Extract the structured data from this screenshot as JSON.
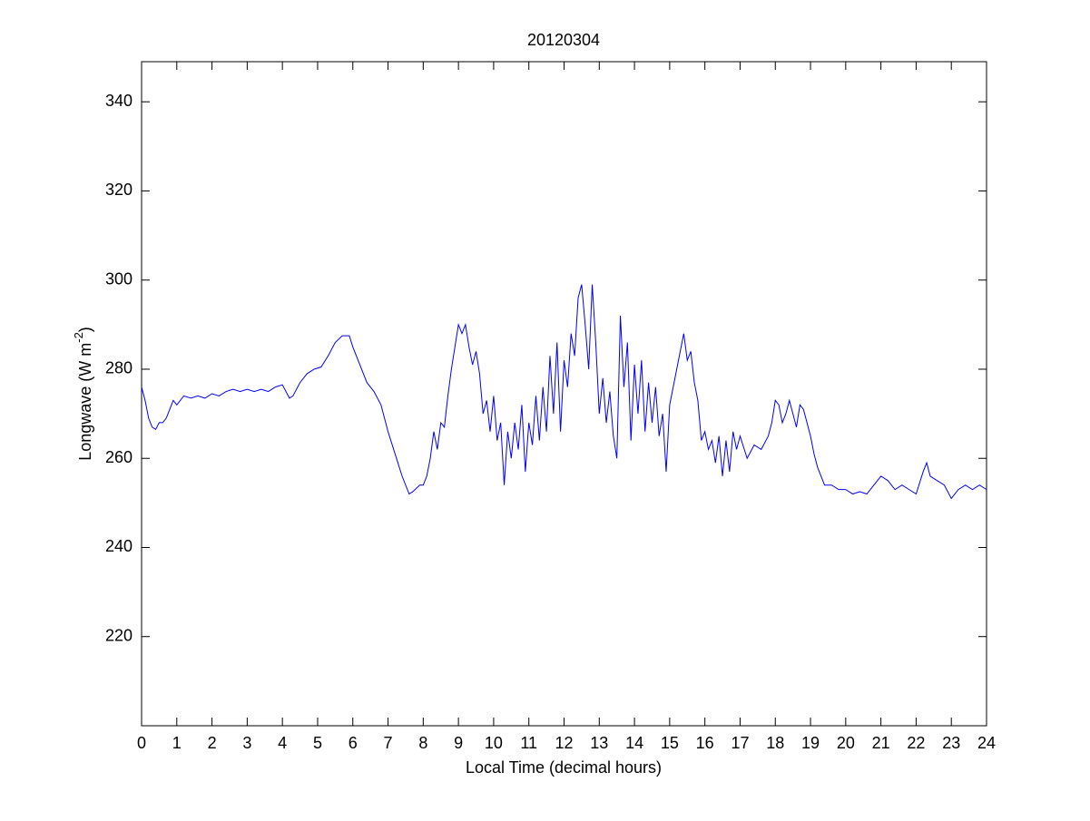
{
  "chart_data": {
    "type": "line",
    "title": "20120304",
    "xlabel": "Local Time (decimal hours)",
    "ylabel_parts": [
      "Longwave (W m",
      "-2",
      ")"
    ],
    "x": [
      0,
      0.1,
      0.2,
      0.3,
      0.4,
      0.5,
      0.6,
      0.7,
      0.8,
      0.9,
      1.0,
      1.2,
      1.4,
      1.6,
      1.8,
      2.0,
      2.2,
      2.4,
      2.6,
      2.8,
      3.0,
      3.2,
      3.4,
      3.6,
      3.8,
      4.0,
      4.1,
      4.2,
      4.3,
      4.5,
      4.7,
      4.9,
      5.1,
      5.3,
      5.5,
      5.7,
      5.9,
      6.0,
      6.2,
      6.4,
      6.6,
      6.8,
      7.0,
      7.2,
      7.4,
      7.6,
      7.7,
      7.9,
      8.0,
      8.1,
      8.2,
      8.3,
      8.4,
      8.5,
      8.6,
      8.7,
      8.8,
      8.9,
      9.0,
      9.1,
      9.2,
      9.3,
      9.4,
      9.5,
      9.6,
      9.7,
      9.8,
      9.9,
      10.0,
      10.1,
      10.2,
      10.3,
      10.4,
      10.5,
      10.6,
      10.7,
      10.8,
      10.9,
      11.0,
      11.1,
      11.2,
      11.3,
      11.4,
      11.5,
      11.6,
      11.7,
      11.8,
      11.9,
      12.0,
      12.1,
      12.2,
      12.3,
      12.4,
      12.5,
      12.6,
      12.7,
      12.8,
      12.9,
      13.0,
      13.1,
      13.2,
      13.3,
      13.4,
      13.5,
      13.6,
      13.7,
      13.8,
      13.9,
      14.0,
      14.1,
      14.2,
      14.3,
      14.4,
      14.5,
      14.6,
      14.7,
      14.8,
      14.9,
      15.0,
      15.2,
      15.4,
      15.5,
      15.6,
      15.7,
      15.8,
      15.9,
      16.0,
      16.1,
      16.2,
      16.3,
      16.4,
      16.5,
      16.6,
      16.7,
      16.8,
      16.9,
      17.0,
      17.2,
      17.4,
      17.6,
      17.8,
      17.9,
      18.0,
      18.1,
      18.2,
      18.3,
      18.4,
      18.5,
      18.6,
      18.7,
      18.8,
      18.9,
      19.0,
      19.1,
      19.2,
      19.3,
      19.4,
      19.6,
      19.8,
      20.0,
      20.2,
      20.4,
      20.6,
      20.8,
      21.0,
      21.2,
      21.4,
      21.6,
      21.8,
      22.0,
      22.2,
      22.3,
      22.4,
      22.6,
      22.8,
      23.0,
      23.2,
      23.4,
      23.6,
      23.8,
      24.0
    ],
    "series": [
      {
        "color": "#0000ff",
        "values": [
          276,
          273,
          269,
          267,
          266.5,
          268,
          268,
          269,
          271,
          273,
          272,
          274,
          273.5,
          274,
          273.5,
          274.5,
          274,
          275,
          275.5,
          275,
          275.5,
          275,
          275.5,
          275,
          276,
          276.5,
          275,
          273.5,
          274,
          277,
          279,
          280,
          280.5,
          283,
          286,
          287.5,
          287.5,
          285,
          281,
          277,
          275,
          272,
          266,
          261,
          256,
          252,
          252.5,
          254,
          254,
          256,
          260,
          266,
          262,
          268,
          267,
          274,
          280,
          285,
          290,
          288,
          290,
          285,
          281,
          284,
          279,
          270,
          273,
          266,
          274,
          264,
          268,
          254,
          266,
          260,
          268,
          262,
          272,
          257,
          268,
          263,
          274,
          264,
          276,
          266,
          283,
          270,
          286,
          266,
          282,
          276,
          288,
          283,
          296,
          299,
          290,
          280,
          299,
          286,
          270,
          278,
          268,
          275,
          265,
          260,
          292,
          276,
          286,
          264,
          281,
          270,
          282,
          266,
          277,
          268,
          276,
          265,
          270,
          257,
          272,
          280,
          288,
          282,
          284,
          277,
          273,
          264,
          266,
          262,
          264,
          259,
          265,
          256,
          264,
          257,
          266,
          262,
          265,
          260,
          263,
          262,
          265,
          268,
          273,
          272,
          268,
          270,
          273,
          270,
          267,
          272,
          271,
          268,
          265,
          261,
          258,
          256,
          254,
          254,
          253,
          253,
          252,
          252.5,
          252,
          254,
          256,
          255,
          253,
          254,
          253,
          252,
          257,
          259,
          256,
          255,
          254,
          251,
          253,
          254,
          253,
          254,
          253
        ]
      }
    ],
    "xlim": [
      0,
      24
    ],
    "xticks": [
      0,
      1,
      2,
      3,
      4,
      5,
      6,
      7,
      8,
      9,
      10,
      11,
      12,
      13,
      14,
      15,
      16,
      17,
      18,
      19,
      20,
      21,
      22,
      23,
      24
    ],
    "ylim": [
      200,
      349
    ],
    "yticks": [
      220,
      240,
      260,
      280,
      300,
      320,
      340
    ]
  }
}
